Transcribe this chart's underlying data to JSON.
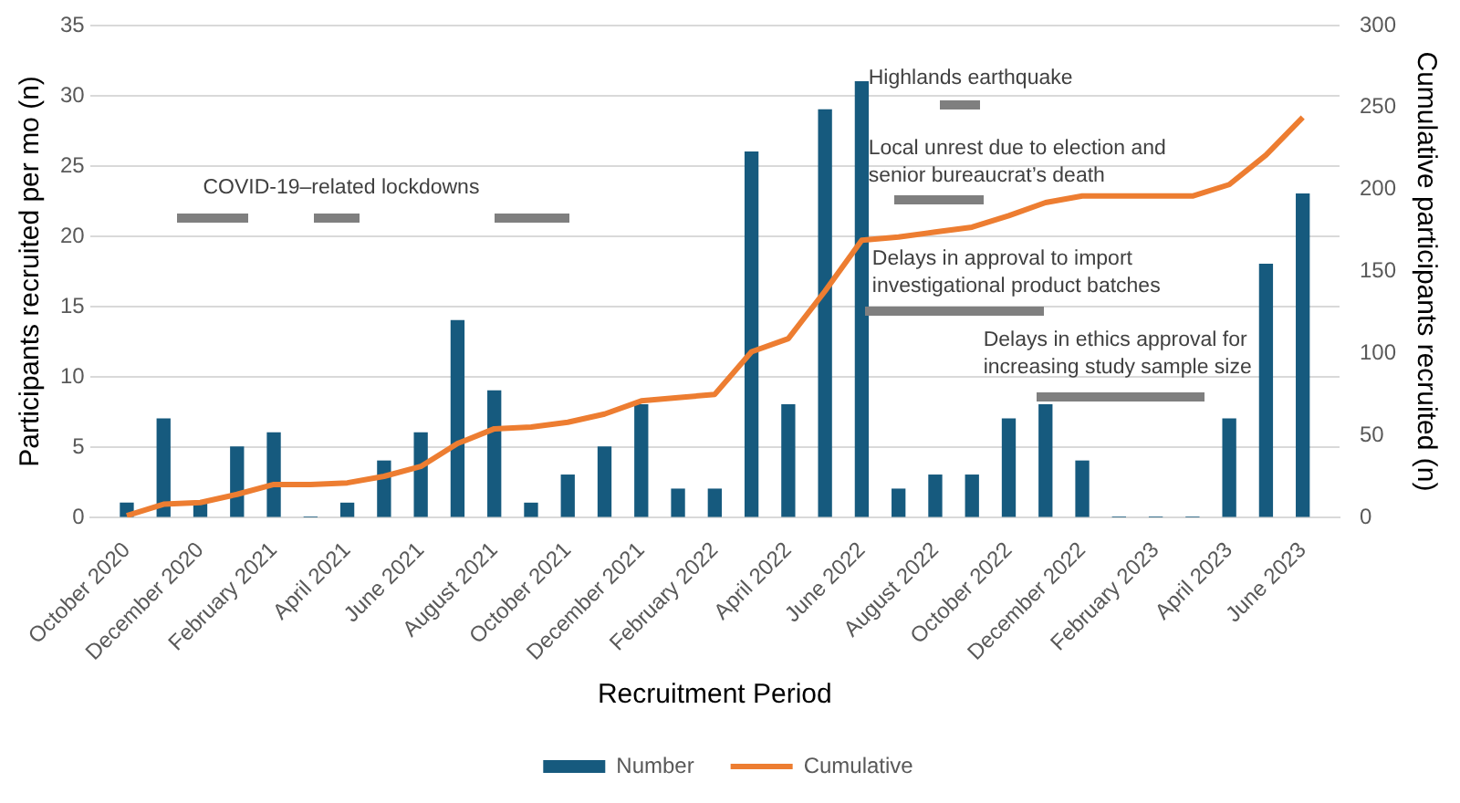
{
  "chart_data": {
    "type": "bar",
    "x": [
      "2020-10",
      "2020-11",
      "2020-12",
      "2021-01",
      "2021-02",
      "2021-03",
      "2021-04",
      "2021-05",
      "2021-06",
      "2021-07",
      "2021-08",
      "2021-09",
      "2021-10",
      "2021-11",
      "2021-12",
      "2022-01",
      "2022-02",
      "2022-03",
      "2022-04",
      "2022-05",
      "2022-06",
      "2022-07",
      "2022-08",
      "2022-09",
      "2022-10",
      "2022-11",
      "2022-12",
      "2023-01",
      "2023-02",
      "2023-03",
      "2023-04",
      "2023-05",
      "2023-06"
    ],
    "xlim": [
      "2020-09",
      "2023-07"
    ],
    "xticks": [
      {
        "value": "2020-10",
        "label": "October 2020"
      },
      {
        "value": "2020-12",
        "label": "December 2020"
      },
      {
        "value": "2021-02",
        "label": "February 2021"
      },
      {
        "value": "2021-04",
        "label": "April 2021"
      },
      {
        "value": "2021-06",
        "label": "June 2021"
      },
      {
        "value": "2021-08",
        "label": "August 2021"
      },
      {
        "value": "2021-10",
        "label": "October 2021"
      },
      {
        "value": "2021-12",
        "label": "December 2021"
      },
      {
        "value": "2022-02",
        "label": "February 2022"
      },
      {
        "value": "2022-04",
        "label": "April 2022"
      },
      {
        "value": "2022-06",
        "label": "June 2022"
      },
      {
        "value": "2022-08",
        "label": "August 2022"
      },
      {
        "value": "2022-10",
        "label": "October 2022"
      },
      {
        "value": "2022-12",
        "label": "December 2022"
      },
      {
        "value": "2023-02",
        "label": "February 2023"
      },
      {
        "value": "2023-04",
        "label": "April 2023"
      },
      {
        "value": "2023-06",
        "label": "June 2023"
      }
    ],
    "series": [
      {
        "name": "Number",
        "color": "#165a7e",
        "values": [
          1,
          7,
          1,
          5,
          6,
          0,
          1,
          4,
          6,
          14,
          9,
          1,
          3,
          5,
          8,
          2,
          2,
          26,
          8,
          29,
          31,
          2,
          3,
          3,
          7,
          8,
          4,
          0,
          0,
          0,
          7,
          18,
          23
        ]
      },
      {
        "name": "Cumulative",
        "type": "line",
        "axis": "y2",
        "color": "#ed7d31",
        "values": [
          1,
          8,
          9,
          14,
          20,
          20,
          21,
          25,
          31,
          45,
          54,
          55,
          58,
          63,
          71,
          73,
          75,
          101,
          109,
          138,
          169,
          171,
          174,
          177,
          184,
          192,
          196,
          196,
          196,
          196,
          203,
          221,
          244
        ]
      }
    ],
    "ylim": [
      0,
      35
    ],
    "yticks": [
      0,
      5,
      10,
      15,
      20,
      25,
      30,
      35
    ],
    "y2lim": [
      0,
      300
    ],
    "y2ticks": [
      0,
      50,
      100,
      150,
      200,
      250,
      300
    ],
    "xlabel": "Recruitment Period",
    "ylabel": "Participants recruited per mo (n)",
    "y2label": "Cumulative participants recruited (n)",
    "annotations": [
      "COVID-19–related lockdowns",
      "Highlands earthquake",
      "Local unrest due to election and senior bureaucrat’s death",
      "Delays in approval to import investigational product batches",
      "Delays in ethics approval for increasing study sample size"
    ],
    "grid": "y",
    "legend": "bottom",
    "marker": "none",
    "line_style": "solid"
  }
}
